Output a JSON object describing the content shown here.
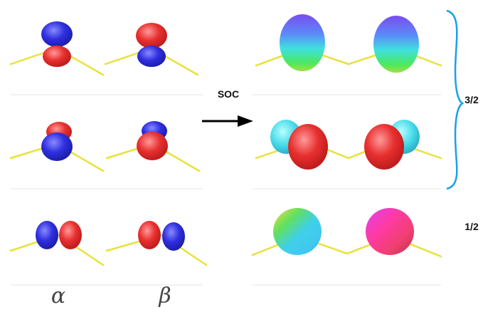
{
  "labels": {
    "soc": "SOC",
    "j_high": "3/2",
    "j_low": "1/2",
    "alpha": "α",
    "beta": "β"
  }
}
